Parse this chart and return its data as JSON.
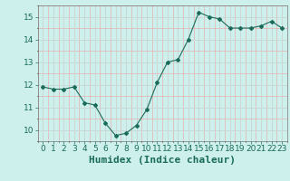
{
  "xlabel": "Humidex (Indice chaleur)",
  "x": [
    0,
    1,
    2,
    3,
    4,
    5,
    6,
    7,
    8,
    9,
    10,
    11,
    12,
    13,
    14,
    15,
    16,
    17,
    18,
    19,
    20,
    21,
    22,
    23
  ],
  "y": [
    11.9,
    11.8,
    11.8,
    11.9,
    11.2,
    11.1,
    10.3,
    9.75,
    9.85,
    10.2,
    10.9,
    12.1,
    13.0,
    13.1,
    14.0,
    15.2,
    15.0,
    14.9,
    14.5,
    14.5,
    14.5,
    14.6,
    14.8,
    14.5
  ],
  "line_color": "#1a6b5a",
  "marker": "D",
  "marker_size": 2,
  "bg_color": "#cdf0ec",
  "grid_major_color": "#c8d8d4",
  "grid_minor_color": "#e8b0b0",
  "ylim": [
    9.5,
    15.5
  ],
  "yticks": [
    10,
    11,
    12,
    13,
    14,
    15
  ],
  "xlim": [
    -0.5,
    23.5
  ],
  "xticks": [
    0,
    1,
    2,
    3,
    4,
    5,
    6,
    7,
    8,
    9,
    10,
    11,
    12,
    13,
    14,
    15,
    16,
    17,
    18,
    19,
    20,
    21,
    22,
    23
  ],
  "tick_fontsize": 6.5,
  "xlabel_fontsize": 8
}
